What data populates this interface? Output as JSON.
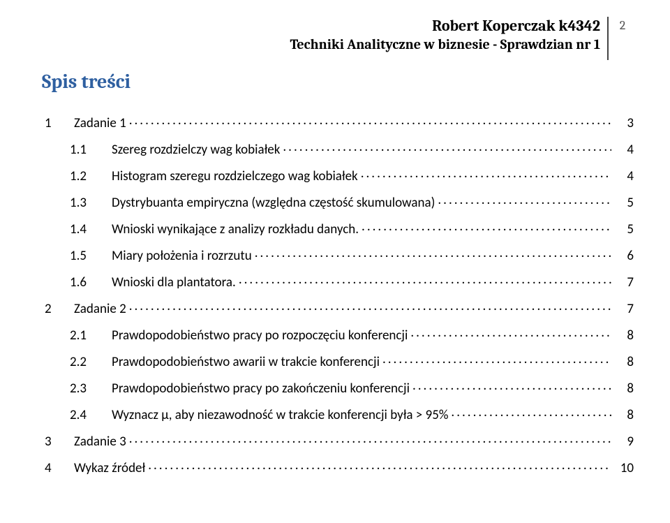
{
  "header": {
    "title_line1": "Robert Koperczak k4342",
    "title_line2": "Techniki Analityczne w biznesie - Sprawdzian nr 1",
    "page_number": "2"
  },
  "toc_title": "Spis treści",
  "toc": [
    {
      "level": 0,
      "num": "1",
      "label": "Zadanie 1",
      "page": "3"
    },
    {
      "level": 1,
      "num": "1.1",
      "label": "Szereg rozdzielczy wag kobiałek",
      "page": "4"
    },
    {
      "level": 1,
      "num": "1.2",
      "label": "Histogram szeregu rozdzielczego wag kobiałek",
      "page": "4"
    },
    {
      "level": 1,
      "num": "1.3",
      "label": "Dystrybuanta empiryczna (względna częstość skumulowana)",
      "page": "5"
    },
    {
      "level": 1,
      "num": "1.4",
      "label": "Wnioski wynikające z analizy rozkładu danych.",
      "page": "5"
    },
    {
      "level": 1,
      "num": "1.5",
      "label": "Miary położenia i rozrzutu",
      "page": "6"
    },
    {
      "level": 1,
      "num": "1.6",
      "label": "Wnioski dla plantatora.",
      "page": "7"
    },
    {
      "level": 0,
      "num": "2",
      "label": "Zadanie 2",
      "page": "7"
    },
    {
      "level": 1,
      "num": "2.1",
      "label": "Prawdopodobieństwo pracy po rozpoczęciu konferencji",
      "page": "8"
    },
    {
      "level": 1,
      "num": "2.2",
      "label": "Prawdopodobieństwo awarii w trakcie konferencji",
      "page": "8"
    },
    {
      "level": 1,
      "num": "2.3",
      "label": "Prawdopodobieństwo pracy po zakończeniu konferencji",
      "page": "8"
    },
    {
      "level": 1,
      "num": "2.4",
      "label": "Wyznacz μ, aby niezawodność w trakcie konferencji była > 95%",
      "page": "8"
    },
    {
      "level": 0,
      "num": "3",
      "label": "Zadanie 3",
      "page": "9"
    },
    {
      "level": 0,
      "num": "4",
      "label": "Wykaz źródeł",
      "page": "10"
    }
  ],
  "style": {
    "accent_color": "#2e5fa0",
    "text_color": "#000000",
    "page_number_color": "#555555",
    "divider_color": "#444444",
    "background": "#ffffff",
    "header_fontsize": 22,
    "subtitle_fontsize": 20,
    "toc_title_fontsize": 28,
    "toc_fontsize": 19
  }
}
